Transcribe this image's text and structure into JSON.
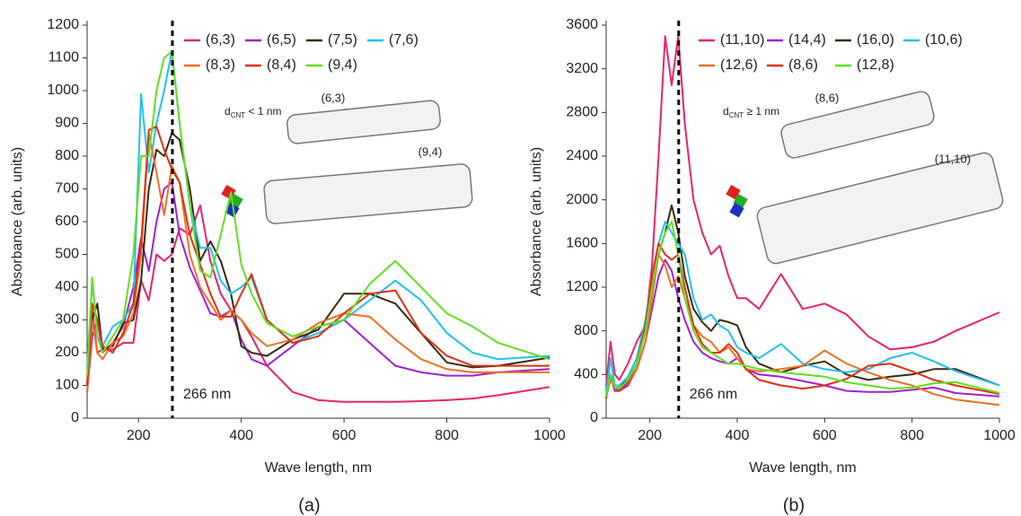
{
  "chart_data": [
    {
      "type": "line",
      "caption": "(a)",
      "xlabel": "Wave length, nm",
      "ylabel": "Absorbance (arb. units)",
      "xlim": [
        100,
        1000
      ],
      "ylim": [
        0,
        1200
      ],
      "xticks": [
        200,
        400,
        600,
        800,
        1000
      ],
      "yticks": [
        0,
        100,
        200,
        300,
        400,
        500,
        600,
        700,
        800,
        900,
        1000,
        1100,
        1200
      ],
      "marker_line": {
        "x": 266,
        "label": "266 nm"
      },
      "inset": {
        "label_main": "d",
        "label_sub": "CNT",
        "label_rest": " < 1 nm",
        "tubes": [
          "(6,3)",
          "(9,4)"
        ]
      },
      "x": [
        100,
        110,
        120,
        130,
        150,
        170,
        190,
        205,
        220,
        235,
        250,
        265,
        280,
        300,
        320,
        340,
        360,
        380,
        400,
        420,
        450,
        500,
        550,
        600,
        650,
        700,
        750,
        800,
        850,
        900,
        1000
      ],
      "series": [
        {
          "name": "(6,3)",
          "color": "#e8226e",
          "values": [
            100,
            330,
            200,
            210,
            210,
            230,
            230,
            420,
            360,
            500,
            480,
            500,
            580,
            560,
            650,
            480,
            380,
            330,
            300,
            250,
            160,
            80,
            55,
            50,
            50,
            50,
            52,
            55,
            60,
            70,
            95
          ]
        },
        {
          "name": "(6,5)",
          "color": "#a020d0",
          "values": [
            80,
            250,
            300,
            200,
            230,
            280,
            400,
            550,
            450,
            600,
            700,
            720,
            560,
            460,
            390,
            320,
            310,
            330,
            240,
            180,
            160,
            220,
            280,
            300,
            230,
            160,
            140,
            130,
            130,
            140,
            150
          ]
        },
        {
          "name": "(7,5)",
          "color": "#3a2a10",
          "values": [
            100,
            300,
            350,
            210,
            220,
            290,
            300,
            420,
            700,
            820,
            800,
            870,
            850,
            700,
            480,
            540,
            480,
            380,
            220,
            200,
            190,
            240,
            270,
            380,
            380,
            350,
            260,
            170,
            155,
            160,
            185
          ]
        },
        {
          "name": "(7,6)",
          "color": "#20c0f0",
          "values": [
            150,
            420,
            250,
            220,
            280,
            300,
            350,
            990,
            750,
            900,
            1000,
            1120,
            900,
            650,
            520,
            520,
            420,
            380,
            400,
            430,
            300,
            230,
            260,
            300,
            360,
            420,
            360,
            260,
            200,
            180,
            190
          ]
        },
        {
          "name": "(8,3)",
          "color": "#f07020",
          "values": [
            80,
            300,
            200,
            180,
            230,
            250,
            320,
            500,
            870,
            750,
            620,
            770,
            720,
            500,
            400,
            350,
            300,
            330,
            300,
            260,
            220,
            240,
            290,
            320,
            310,
            240,
            180,
            150,
            140,
            140,
            140
          ]
        },
        {
          "name": "(8,4)",
          "color": "#e03010",
          "values": [
            100,
            350,
            300,
            220,
            200,
            260,
            350,
            530,
            880,
            890,
            820,
            760,
            720,
            560,
            470,
            380,
            310,
            310,
            380,
            440,
            300,
            230,
            250,
            320,
            380,
            390,
            260,
            190,
            160,
            160,
            160
          ]
        },
        {
          "name": "(9,4)",
          "color": "#60e020",
          "values": [
            130,
            430,
            250,
            200,
            250,
            300,
            500,
            800,
            800,
            1000,
            1100,
            1120,
            900,
            650,
            450,
            430,
            560,
            690,
            470,
            380,
            290,
            250,
            280,
            300,
            410,
            480,
            400,
            320,
            280,
            230,
            180
          ]
        }
      ]
    },
    {
      "type": "line",
      "caption": "(b)",
      "xlabel": "Wave length, nm",
      "ylabel": "Absorbance (arb. units)",
      "xlim": [
        100,
        1000
      ],
      "ylim": [
        0,
        3600
      ],
      "xticks": [
        200,
        400,
        600,
        800,
        1000
      ],
      "yticks": [
        0,
        400,
        800,
        1200,
        1600,
        2000,
        2400,
        2800,
        3200,
        3600
      ],
      "marker_line": {
        "x": 266,
        "label": "266 nm"
      },
      "inset": {
        "label_main": "d",
        "label_sub": "CNT",
        "label_rest": " ≥ 1 nm",
        "tubes": [
          "(8,6)",
          "(11,10)"
        ]
      },
      "x": [
        100,
        110,
        120,
        130,
        150,
        170,
        190,
        205,
        220,
        235,
        250,
        265,
        280,
        300,
        320,
        340,
        360,
        380,
        400,
        420,
        450,
        500,
        550,
        600,
        650,
        700,
        750,
        800,
        850,
        900,
        1000
      ],
      "series": [
        {
          "name": "(11,10)",
          "color": "#e8226e",
          "values": [
            300,
            700,
            400,
            350,
            500,
            700,
            850,
            1400,
            2400,
            3500,
            3050,
            3500,
            2700,
            2000,
            1700,
            1500,
            1580,
            1300,
            1100,
            1100,
            1000,
            1320,
            1000,
            1050,
            950,
            750,
            630,
            650,
            700,
            800,
            970
          ]
        },
        {
          "name": "(14,4)",
          "color": "#a020d0",
          "values": [
            200,
            380,
            250,
            250,
            300,
            450,
            700,
            1000,
            1300,
            1450,
            1350,
            1100,
            900,
            700,
            600,
            550,
            520,
            500,
            550,
            450,
            400,
            380,
            340,
            300,
            250,
            240,
            240,
            260,
            280,
            230,
            200
          ]
        },
        {
          "name": "(16,0)",
          "color": "#3a2a10",
          "values": [
            250,
            400,
            300,
            300,
            350,
            500,
            800,
            1200,
            1500,
            1700,
            1950,
            1700,
            1300,
            1000,
            880,
            800,
            900,
            880,
            850,
            650,
            500,
            420,
            480,
            520,
            400,
            350,
            380,
            400,
            450,
            450,
            300
          ]
        },
        {
          "name": "(10,6)",
          "color": "#20c0f0",
          "values": [
            220,
            550,
            300,
            300,
            380,
            550,
            900,
            1300,
            1600,
            1800,
            1700,
            1600,
            1500,
            1100,
            900,
            950,
            850,
            800,
            650,
            600,
            550,
            680,
            500,
            450,
            420,
            450,
            550,
            600,
            520,
            430,
            300
          ]
        },
        {
          "name": "(12,6)",
          "color": "#f07020",
          "values": [
            200,
            350,
            280,
            280,
            320,
            450,
            700,
            1100,
            1500,
            1400,
            1200,
            1300,
            1100,
            850,
            750,
            700,
            600,
            650,
            550,
            450,
            430,
            450,
            480,
            620,
            500,
            420,
            350,
            300,
            220,
            170,
            120
          ]
        },
        {
          "name": "(8,6)",
          "color": "#e03010",
          "values": [
            180,
            400,
            280,
            250,
            330,
            500,
            850,
            1300,
            1600,
            1500,
            1450,
            1500,
            1200,
            850,
            680,
            600,
            600,
            680,
            600,
            450,
            350,
            300,
            270,
            300,
            360,
            480,
            500,
            430,
            350,
            300,
            220
          ]
        },
        {
          "name": "(12,8)",
          "color": "#60e020",
          "values": [
            200,
            400,
            280,
            270,
            350,
            500,
            800,
            1200,
            1500,
            1700,
            1800,
            1500,
            1100,
            800,
            650,
            600,
            550,
            500,
            500,
            480,
            450,
            420,
            400,
            380,
            330,
            300,
            270,
            280,
            320,
            330,
            230
          ]
        }
      ]
    }
  ]
}
